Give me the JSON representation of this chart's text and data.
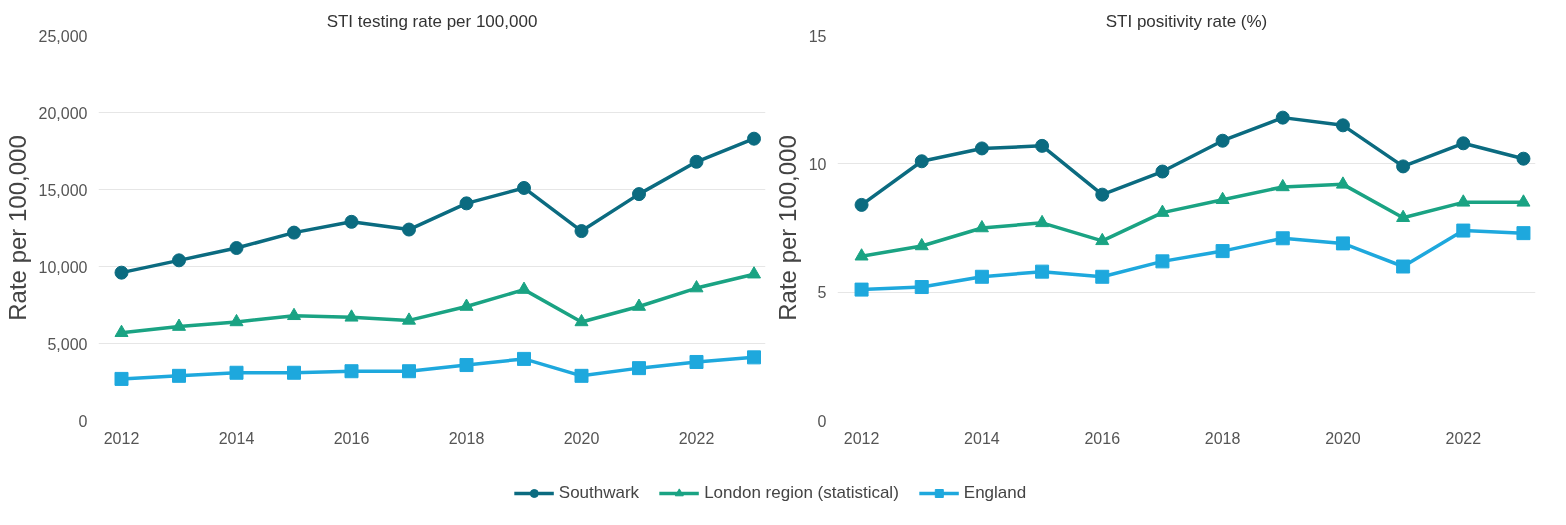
{
  "chart_data": [
    {
      "type": "line",
      "title": "STI testing rate per 100,000",
      "ylabel": "Rate per 100,000",
      "x": [
        2012,
        2013,
        2014,
        2015,
        2016,
        2017,
        2018,
        2019,
        2020,
        2021,
        2022,
        2023
      ],
      "series": [
        {
          "name": "Southwark",
          "color": "#0b6b80",
          "marker": "circle",
          "values": [
            9600,
            10400,
            11200,
            12200,
            12900,
            12400,
            14100,
            15100,
            12300,
            14700,
            16800,
            18300
          ]
        },
        {
          "name": "London region (statistical)",
          "color": "#1aa383",
          "marker": "triangle",
          "values": [
            5700,
            6100,
            6400,
            6800,
            6700,
            6500,
            7400,
            8500,
            6400,
            7400,
            8600,
            9500
          ]
        },
        {
          "name": "England",
          "color": "#1ea8dd",
          "marker": "square",
          "values": [
            2700,
            2900,
            3100,
            3100,
            3200,
            3200,
            3600,
            4000,
            2900,
            3400,
            3800,
            4100
          ]
        }
      ],
      "xlim": [
        2011.6,
        2023.2
      ],
      "xticks": [
        2012,
        2014,
        2016,
        2018,
        2020,
        2022
      ],
      "ylim": [
        0,
        25000
      ],
      "yticks": [
        {
          "value": 0,
          "label": "0"
        },
        {
          "value": 5000,
          "label": "5,000"
        },
        {
          "value": 10000,
          "label": "10,000"
        },
        {
          "value": 15000,
          "label": "15,000"
        },
        {
          "value": 20000,
          "label": "20,000"
        },
        {
          "value": 25000,
          "label": "25,000"
        }
      ],
      "grid": "y",
      "legend": "bottom",
      "line_style": "solid"
    },
    {
      "type": "line",
      "title": "STI positivity rate (%)",
      "ylabel": "Rate per 100,000",
      "x": [
        2012,
        2013,
        2014,
        2015,
        2016,
        2017,
        2018,
        2019,
        2020,
        2021,
        2022,
        2023
      ],
      "series": [
        {
          "color": "#0b6b80",
          "marker": "circle",
          "values": [
            8.4,
            10.1,
            10.6,
            10.7,
            8.8,
            9.7,
            10.9,
            11.8,
            11.5,
            9.9,
            10.8,
            10.2
          ]
        },
        {
          "color": "#1aa383",
          "marker": "triangle",
          "values": [
            6.4,
            6.8,
            7.5,
            7.7,
            7.0,
            8.1,
            8.6,
            9.1,
            9.2,
            7.9,
            8.5,
            8.5
          ]
        },
        {
          "color": "#1ea8dd",
          "marker": "square",
          "values": [
            5.1,
            5.2,
            5.6,
            5.8,
            5.6,
            6.2,
            6.6,
            7.1,
            6.9,
            6.0,
            7.4,
            7.3
          ]
        }
      ],
      "xlim": [
        2011.6,
        2023.2
      ],
      "xticks": [
        2012,
        2014,
        2016,
        2018,
        2020,
        2022
      ],
      "ylim": [
        0,
        15
      ],
      "yticks": [
        0,
        5,
        10,
        15
      ],
      "grid": "y",
      "line_style": "solid"
    }
  ]
}
